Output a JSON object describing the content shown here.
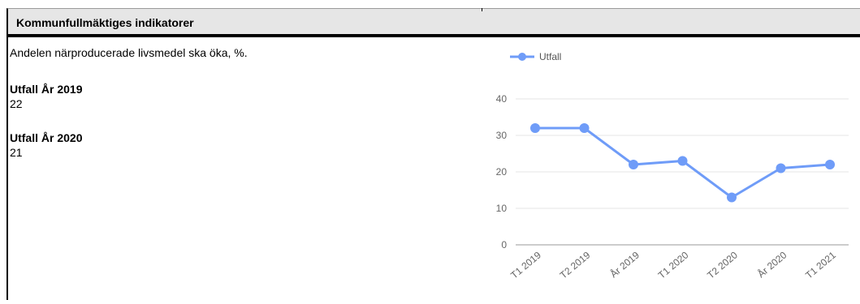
{
  "header": {
    "title": "Kommunfullmäktiges indikatorer"
  },
  "indicator": {
    "description": "Andelen närproducerade livsmedel ska öka, %.",
    "kpis": [
      {
        "label": "Utfall År 2019",
        "value": "22"
      },
      {
        "label": "Utfall År 2020",
        "value": "21"
      }
    ]
  },
  "chart_data": {
    "type": "line",
    "categories": [
      "T1 2019",
      "T2 2019",
      "År 2019",
      "T1 2020",
      "T2 2020",
      "År 2020",
      "T1 2021"
    ],
    "series": [
      {
        "name": "Utfall",
        "values": [
          32,
          32,
          22,
          23,
          13,
          21,
          22
        ],
        "color": "#6f9cf8"
      }
    ],
    "yticks": [
      0,
      10,
      20,
      30,
      40
    ],
    "ylim": [
      0,
      40
    ],
    "legend_position": "top-left",
    "grid": true,
    "gridColor": "#e6e6e6"
  }
}
